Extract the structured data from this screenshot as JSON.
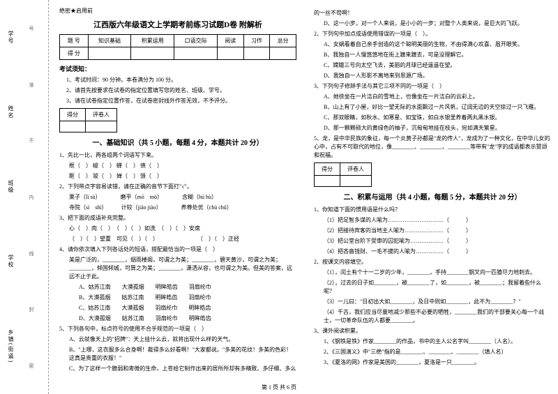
{
  "margin": {
    "labels": [
      "学号",
      "姓名",
      "班级",
      "学校",
      "乡镇(街道)"
    ],
    "marks": [
      "号",
      "准",
      "不",
      "内",
      "线",
      "封",
      "密"
    ]
  },
  "secret": "绝密★启用前",
  "title": "江西版六年级语文上学期考前练习试题D卷 附解析",
  "score_header": [
    "题 号",
    "知识基础",
    "积累运用",
    "口语交际",
    "阅读",
    "习作",
    "总分"
  ],
  "score_row2": "得 分",
  "notice_h": "考试须知：",
  "notices": [
    "1、考试时间：90 分钟。本卷满分为 100 分。",
    "2、请首先按要求在试卷的指定位置填写您的姓名、班级、学号。",
    "3、请在试卷指定位置作答，在试卷密封线外作答无效，不予评分。"
  ],
  "sec_label": [
    "得分",
    "评卷人"
  ],
  "section1": "一、基础知识（共 5 小题，每题 4 分，本题共计 20 分）",
  "q1": "1、先比一比，再各组两个词语写下来。",
  "q1_lines": [
    "框（　）  峻（　）  蝉（　）  债（　）",
    "眶（　）  竣（　）  婵（　）  馈（　）"
  ],
  "q2": "2、下列带点字容易读错，请在正确的音节下面打\"√\"。",
  "q2_lines": [
    "栗子（lì sù）　　　　磨平（mó　mò）　　　　含糊（hú hù）",
    "寺院（sì　shì）　　　计较（jiāo jiào）　　　　养尊处优（chú chǔ）"
  ],
  "q3": "3、把下面的成语补充完整。",
  "q3_lines": [
    "心（　）肉（　）　（　）（　）如洗　（　）（　）安席",
    "（　）（　）望重　可见（　）（　）　　　　　　　　（　）（　）正经"
  ],
  "q4": "4、请你依次填入下列各话处的短语，搭配最恰当的一项是（　）",
  "q4_body": "美是广泛的，________，烟雨楼阁，可谓之为美；________，碧天黄沙，可谓之为美；________，倾国倾城，可算之为美；________，潇洒从容，也可谓之为美。但美的答案，远远不止于此。",
  "q4_opts": [
    "A、姑苏江南　　大漠孤烟　　明眸皓齿　　羽扇纶巾",
    "B、大漠孤烟　　姑苏江南　　明眸皓齿　　羽扇纶巾",
    "C、姑苏江南　　大漠孤烟　　羽扇纶巾　　明眸皓齿",
    "D、大漠孤烟　　姑苏江南　　羽扇纶巾　　明眸皓齿"
  ],
  "q5": "5、下列各句中，标点符号的使用不合乎规范的一项是（　）",
  "q5_opts": [
    "A、云就像天上的\"招牌\"：天上挂什么云，就将出现什么样的天气。",
    "B、\"上哪，这衣服多么合身啊！裁得多么好看啊！\"大家都说。\"多美的花纹！多美的色彩！这真是贵重的衣服！\"",
    "C、为了这样一个脆弱和卑微的生命，上苍给它制作出来的居所所却有多精致、多仔细、多么"
  ],
  "right": {
    "l1": "的一丝不苟啊！",
    "l2": "D、这一小步，对一个人来说，是小小的一步；对整个人类来说，是巨大的飞跃。",
    "q2h": "2、下列句中加点成语使用错误的一项是（　）。",
    "q2a": "A、女娲看着自己亲手创造的这个聪明美丽的生物，不由得满心欢喜、眉开眼笑。",
    "q2b": "B、我独自一人慢悠悠地在街上踱来踱去，可是没理解它。",
    "q2c": "C、嫦娥三号向太空飞去，美丽的月球已经遥遥在望。",
    "q2d": "D、我独自一人形影不离地来到思源广场。",
    "q3h": "3、下列句子修辞手法与其它三项不同的一项是（　）",
    "q3a": "A、她徐坐在一片洁白的雪地上，也像坐在一片洁白的云彩上。",
    "q3b": "B、山上有了小屋，好比一望无际的水面飘过一片风帆，辽阔无边的天空掠过一只飞雁。",
    "q3c": "C、那双眼睛，如秋水、如寒星、如宝珠，如白水银里养着两丸黑水银。",
    "q3d": "D、那一颗颗硕大的黄绿色的柚子，沉甸甸地挂在枝头，宛如满天繁星。",
    "q5h": "5、龙，是中华民族的象征，每一个炎黄子孙都是\"龙的传人\"，龙成为了一种文化，在中华儿女的心中，占有不可取代的地位，像________、________、________等带有\"龙\"字的成语都表示赞颂和祝福。",
    "section2": "二、积累与运用（共 4 小题，每题 5 分，本题共计 20 分）",
    "r1h": "1、你知道下面的惯用语是什么吗？",
    "r1a": "（1）把足智多谋的人喻为…………………………（　　　）",
    "r1b": "（2）把接待宾客的当地主人喻为…………………（　　　）",
    "r1c": "（3）把公堂台阶下受审的囚犯喻为………………（　　　）",
    "r1d": "（4）把吝啬钱财、一毛不拔的人喻为……………（　　　）",
    "r2h": "2、按课文内容填空。",
    "r2a": "（1），闰土有个十一二岁的少年，________，手持________钢叉向一匹猹尽力地刺去。",
    "r2b": "（2），过去的日子如________，被________了，如________，被________；我留着些什么呢？",
    "r2c": "（3）一儿曰：\"日初出大如________，及日中则如________，此不为________？\"",
    "r2d": "（4）千古，我们应当尽量地减少那些不必要的牺牲，________我们的干部要关心每一个战士，一切革命队伍的人都要________。",
    "r3h": "3、课外阅读积累。",
    "r3a": "1、《钢铁是铁》作家________的作品，书中的主人公名字叫________（人名）。",
    "r3b": "2、《三国演义》中\"三绝\"指的是________、________、________（填人名）",
    "r3c": "3、《夏洛的网》作家是美国的________，夏洛是一只________。"
  },
  "footer": "第 1 页 共 6 页"
}
